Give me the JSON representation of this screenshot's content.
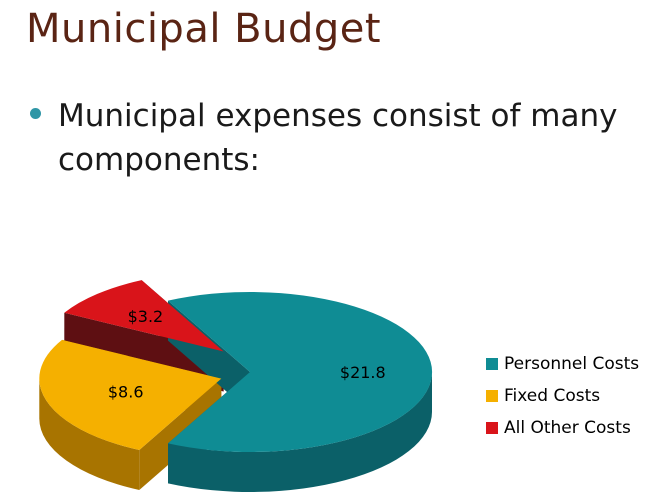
{
  "slide": {
    "title": "Municipal Budget",
    "bullet": "Municipal expenses consist of many components:"
  },
  "chart_data": {
    "type": "pie",
    "title": "",
    "style": "3d-exploded",
    "legend_position": "right",
    "slices": [
      {
        "name": "Personnel Costs",
        "value": 21.8,
        "label": "$21.8",
        "color": "#0f8c94",
        "side_color": "#0b6068"
      },
      {
        "name": "Fixed Costs",
        "value": 8.6,
        "label": "$8.6",
        "color": "#f5b000",
        "side_color": "#a87400"
      },
      {
        "name": "All Other Costs",
        "value": 3.2,
        "label": "$3.2",
        "color": "#d9141a",
        "side_color": "#5e0f12"
      }
    ]
  }
}
